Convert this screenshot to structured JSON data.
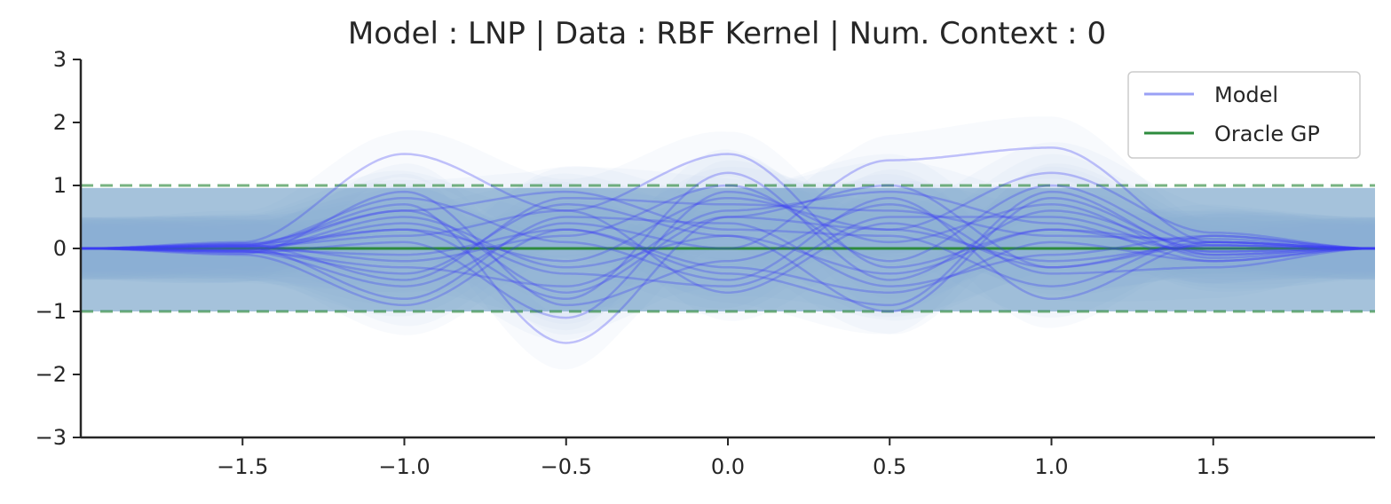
{
  "chart_data": {
    "type": "line",
    "title": "Model : LNP | Data : RBF Kernel | Num. Context : 0",
    "xlabel": "",
    "ylabel": "",
    "xlim": [
      -2,
      2
    ],
    "ylim": [
      -3,
      3
    ],
    "x_ticks": [
      -1.5,
      -1.0,
      -0.5,
      0.0,
      0.5,
      1.0,
      1.5
    ],
    "x_tick_labels": [
      "−1.5",
      "−1.0",
      "−0.5",
      "0.0",
      "0.5",
      "1.0",
      "1.5"
    ],
    "y_ticks": [
      3,
      2,
      1,
      0,
      -1,
      -2,
      -3
    ],
    "y_tick_labels": [
      "3",
      "2",
      "1",
      "0",
      "−1",
      "−2",
      "−3"
    ],
    "grid": false,
    "legend": {
      "position": "top-right",
      "entries": [
        {
          "label": "Model",
          "color": "#9aa0f5"
        },
        {
          "label": "Oracle GP",
          "color": "#2e8b3e"
        }
      ]
    },
    "oracle_gp": {
      "mean": 0,
      "std_band": [
        -1,
        1
      ],
      "color": "#2e8b3e"
    },
    "model_band": {
      "x": [
        -2.0,
        2.0
      ],
      "lower": -1.0,
      "upper": 0.96,
      "color": "#5b8fbd"
    },
    "model_samples": {
      "color": "#3b3bf5",
      "count": 20,
      "description_x": [
        -2.0,
        -1.5,
        -1.0,
        -0.5,
        0.0,
        0.5,
        1.0,
        1.5,
        2.0
      ],
      "series": [
        {
          "values": [
            0.0,
            0.1,
            1.5,
            0.6,
            1.5,
            -0.3,
            0.3,
            0.1,
            0.0
          ]
        },
        {
          "values": [
            0.0,
            0.05,
            0.7,
            -1.5,
            0.5,
            0.3,
            -0.2,
            0.05,
            0.0
          ]
        },
        {
          "values": [
            0.0,
            -0.05,
            -0.6,
            0.4,
            0.0,
            1.4,
            1.6,
            0.1,
            0.0
          ]
        },
        {
          "values": [
            0.0,
            0.02,
            0.3,
            -0.8,
            1.2,
            -0.5,
            0.6,
            0.0,
            0.0
          ]
        },
        {
          "values": [
            0.0,
            -0.1,
            -0.9,
            0.3,
            -0.4,
            -0.9,
            0.9,
            -0.1,
            0.0
          ]
        },
        {
          "values": [
            0.0,
            0.08,
            0.6,
            0.9,
            0.3,
            0.2,
            -0.6,
            0.2,
            0.0
          ]
        },
        {
          "values": [
            0.0,
            -0.05,
            -0.3,
            -0.6,
            0.6,
            0.9,
            0.4,
            -0.2,
            0.0
          ]
        },
        {
          "values": [
            0.0,
            0.03,
            0.2,
            0.6,
            -0.7,
            0.4,
            -0.3,
            0.1,
            0.0
          ]
        },
        {
          "values": [
            0.0,
            -0.02,
            0.5,
            -0.3,
            0.2,
            -1.0,
            0.8,
            -0.05,
            0.0
          ]
        },
        {
          "values": [
            0.0,
            0.06,
            -0.5,
            0.8,
            0.7,
            0.6,
            0.2,
            0.15,
            0.0
          ]
        },
        {
          "values": [
            0.0,
            -0.08,
            0.9,
            -0.9,
            -0.2,
            0.7,
            -0.4,
            -0.3,
            0.0
          ]
        },
        {
          "values": [
            0.0,
            0.04,
            -0.2,
            0.2,
            1.0,
            -0.2,
            1.0,
            0.05,
            0.0
          ]
        },
        {
          "values": [
            0.0,
            -0.03,
            0.4,
            -0.4,
            -0.6,
            0.5,
            0.5,
            -0.1,
            0.0
          ]
        },
        {
          "values": [
            0.0,
            0.02,
            -0.8,
            0.5,
            0.4,
            -0.6,
            -0.1,
            0.2,
            0.0
          ]
        },
        {
          "values": [
            0.0,
            -0.06,
            0.1,
            -1.1,
            0.9,
            0.1,
            0.7,
            -0.15,
            0.0
          ]
        },
        {
          "values": [
            0.0,
            0.05,
            0.8,
            0.1,
            -0.5,
            0.8,
            -0.8,
            0.1,
            0.0
          ]
        },
        {
          "values": [
            0.0,
            -0.04,
            -0.4,
            0.7,
            0.2,
            -0.4,
            0.3,
            -0.05,
            0.0
          ]
        },
        {
          "values": [
            0.0,
            0.07,
            0.3,
            -0.2,
            0.8,
            0.3,
            1.2,
            0.25,
            0.0
          ]
        },
        {
          "values": [
            0.0,
            -0.02,
            -0.1,
            0.3,
            -0.3,
            -0.7,
            0.1,
            -0.2,
            0.0
          ]
        },
        {
          "values": [
            0.0,
            0.03,
            0.6,
            -0.7,
            0.5,
            1.0,
            -0.3,
            0.05,
            0.0
          ]
        }
      ]
    }
  }
}
